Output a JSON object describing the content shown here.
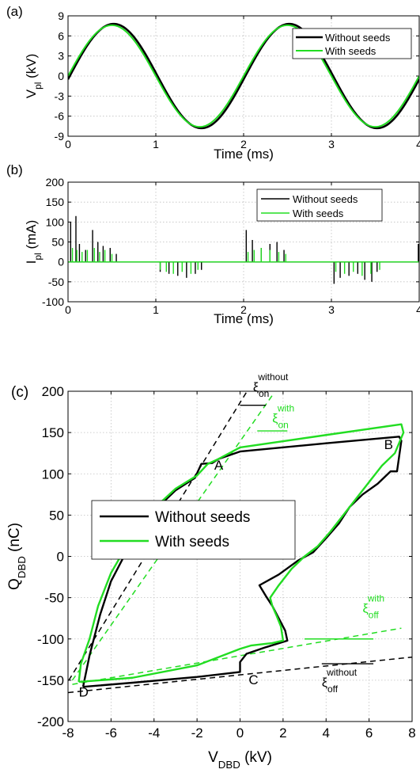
{
  "chart_data": [
    {
      "type": "line",
      "panel_label": "(a)",
      "xlabel": "Time (ms)",
      "ylabel_main": "V",
      "ylabel_sub": "pl",
      "ylabel_unit": " (kV)",
      "xlim": [
        0,
        4
      ],
      "ylim": [
        -9,
        9
      ],
      "xticks": [
        0,
        1,
        2,
        3,
        4
      ],
      "yticks": [
        -9,
        -6,
        -3,
        0,
        3,
        6,
        9
      ],
      "grid": true,
      "legend_position": "top-right",
      "series": [
        {
          "name": "Without seeds",
          "color": "#000000",
          "amplitude": 7.8,
          "frequency_khz": 0.5,
          "zero_crossing_ms": 0.02
        },
        {
          "name": "With seeds",
          "color": "#22dd22",
          "amplitude": 7.6,
          "frequency_khz": 0.5,
          "zero_crossing_ms": 0.0
        }
      ]
    },
    {
      "type": "line",
      "panel_label": "(b)",
      "xlabel": "Time (ms)",
      "ylabel_main": "I",
      "ylabel_sub": "pl",
      "ylabel_unit": " (mA)",
      "xlim": [
        0,
        4
      ],
      "ylim": [
        -100,
        200
      ],
      "xticks": [
        0,
        1,
        2,
        3,
        4
      ],
      "yticks": [
        -100,
        -50,
        0,
        50,
        100,
        150,
        200
      ],
      "grid": true,
      "legend_position": "top-right",
      "series": [
        {
          "name": "Without seeds",
          "color": "#000000",
          "spikes": [
            [
              0.03,
              100
            ],
            [
              0.09,
              115
            ],
            [
              0.13,
              45
            ],
            [
              0.2,
              30
            ],
            [
              0.28,
              80
            ],
            [
              0.34,
              50
            ],
            [
              0.4,
              40
            ],
            [
              0.48,
              35
            ],
            [
              0.55,
              20
            ],
            [
              1.05,
              -25
            ],
            [
              1.15,
              -30
            ],
            [
              1.25,
              -35
            ],
            [
              1.35,
              -40
            ],
            [
              1.45,
              -30
            ],
            [
              1.52,
              -20
            ],
            [
              2.03,
              80
            ],
            [
              2.1,
              55
            ],
            [
              2.2,
              35
            ],
            [
              2.3,
              45
            ],
            [
              2.38,
              50
            ],
            [
              2.46,
              30
            ],
            [
              3.03,
              -55
            ],
            [
              3.1,
              -40
            ],
            [
              3.2,
              -35
            ],
            [
              3.3,
              -30
            ],
            [
              3.38,
              -45
            ],
            [
              3.46,
              -50
            ],
            [
              3.52,
              -25
            ],
            [
              3.99,
              45
            ]
          ]
        },
        {
          "name": "With seeds",
          "color": "#22dd22",
          "spikes": [
            [
              0.05,
              35
            ],
            [
              0.1,
              30
            ],
            [
              0.16,
              25
            ],
            [
              0.22,
              30
            ],
            [
              0.3,
              35
            ],
            [
              0.36,
              25
            ],
            [
              0.42,
              30
            ],
            [
              0.5,
              20
            ],
            [
              1.05,
              -20
            ],
            [
              1.12,
              -25
            ],
            [
              1.2,
              -30
            ],
            [
              1.3,
              -25
            ],
            [
              1.4,
              -30
            ],
            [
              1.48,
              -20
            ],
            [
              2.05,
              25
            ],
            [
              2.12,
              30
            ],
            [
              2.2,
              35
            ],
            [
              2.3,
              30
            ],
            [
              2.4,
              25
            ],
            [
              2.48,
              20
            ],
            [
              3.05,
              -25
            ],
            [
              3.15,
              -30
            ],
            [
              3.25,
              -25
            ],
            [
              3.35,
              -35
            ],
            [
              3.45,
              -30
            ],
            [
              3.55,
              -20
            ]
          ]
        }
      ]
    },
    {
      "type": "line",
      "panel_label": "(c)",
      "xlabel_main": "V",
      "xlabel_sub": "DBD",
      "xlabel_unit": " (kV)",
      "ylabel_main": "Q",
      "ylabel_sub": "DBD",
      "ylabel_unit": " (nC)",
      "xlim": [
        -8,
        8
      ],
      "ylim": [
        -200,
        200
      ],
      "xticks": [
        -8,
        -6,
        -4,
        -2,
        0,
        2,
        4,
        6,
        8
      ],
      "yticks": [
        -200,
        -150,
        -100,
        -50,
        0,
        50,
        100,
        150,
        200
      ],
      "grid": true,
      "legend_position": "middle-left",
      "series": [
        {
          "name": "Without seeds",
          "color": "#000000",
          "points": [
            [
              -7.3,
              -158
            ],
            [
              -5.0,
              -153
            ],
            [
              -2.0,
              -146
            ],
            [
              0.0,
              -140
            ],
            [
              0.0,
              -128
            ],
            [
              0.3,
              -118
            ],
            [
              1.2,
              -110
            ],
            [
              2.2,
              -102
            ],
            [
              2.1,
              -90
            ],
            [
              1.8,
              -75
            ],
            [
              1.5,
              -60
            ],
            [
              1.2,
              -48
            ],
            [
              0.9,
              -35
            ],
            [
              1.8,
              -22
            ],
            [
              2.7,
              -5
            ],
            [
              3.4,
              5
            ],
            [
              4.0,
              22
            ],
            [
              4.6,
              40
            ],
            [
              5.1,
              60
            ],
            [
              5.7,
              75
            ],
            [
              6.4,
              88
            ],
            [
              7.0,
              103
            ],
            [
              7.3,
              103
            ],
            [
              7.5,
              140
            ],
            [
              7.4,
              145
            ],
            [
              4.0,
              137
            ],
            [
              0.0,
              127
            ],
            [
              -1.0,
              118
            ],
            [
              -1.3,
              113
            ],
            [
              -1.8,
              112
            ],
            [
              -2.1,
              95
            ],
            [
              -3.0,
              80
            ],
            [
              -4.0,
              55
            ],
            [
              -5.0,
              20
            ],
            [
              -6.0,
              -30
            ],
            [
              -6.5,
              -70
            ],
            [
              -7.0,
              -120
            ],
            [
              -7.3,
              -158
            ]
          ]
        },
        {
          "name": "With seeds",
          "color": "#22dd22",
          "points": [
            [
              -7.5,
              -152
            ],
            [
              -5.0,
              -147
            ],
            [
              -2.0,
              -132
            ],
            [
              0.0,
              -112
            ],
            [
              0.5,
              -108
            ],
            [
              1.5,
              -105
            ],
            [
              2.0,
              -102
            ],
            [
              1.9,
              -85
            ],
            [
              1.7,
              -72
            ],
            [
              1.5,
              -60
            ],
            [
              1.4,
              -50
            ],
            [
              1.8,
              -35
            ],
            [
              2.4,
              -15
            ],
            [
              3.0,
              0
            ],
            [
              3.6,
              12
            ],
            [
              4.2,
              30
            ],
            [
              4.8,
              50
            ],
            [
              5.4,
              70
            ],
            [
              6.0,
              90
            ],
            [
              6.6,
              110
            ],
            [
              7.2,
              125
            ],
            [
              7.6,
              150
            ],
            [
              7.5,
              160
            ],
            [
              4.0,
              147
            ],
            [
              0.0,
              132
            ],
            [
              -1.0,
              118
            ],
            [
              -1.5,
              112
            ],
            [
              -2.0,
              98
            ],
            [
              -3.0,
              82
            ],
            [
              -4.0,
              58
            ],
            [
              -5.0,
              25
            ],
            [
              -6.0,
              -20
            ],
            [
              -6.6,
              -60
            ],
            [
              -7.0,
              -100
            ],
            [
              -7.4,
              -130
            ],
            [
              -7.5,
              -152
            ]
          ]
        }
      ],
      "dashed_lines": [
        {
          "color": "#000000",
          "from": [
            -8.2,
            -160
          ],
          "to": [
            0.8,
            220
          ]
        },
        {
          "color": "#22dd22",
          "from": [
            -7.8,
            -150
          ],
          "to": [
            1.5,
            195
          ]
        },
        {
          "color": "#000000",
          "from": [
            -8.0,
            -165
          ],
          "to": [
            8.0,
            -122
          ]
        },
        {
          "color": "#22dd22",
          "from": [
            -7.8,
            -155
          ],
          "to": [
            7.5,
            -87
          ]
        }
      ],
      "solid_marks": [
        {
          "color": "#000000",
          "from": [
            0.0,
            183
          ],
          "to": [
            1.2,
            183
          ]
        },
        {
          "color": "#22dd22",
          "from": [
            0.8,
            152
          ],
          "to": [
            2.2,
            152
          ]
        },
        {
          "color": "#22dd22",
          "from": [
            3.0,
            -100
          ],
          "to": [
            6.2,
            -100
          ]
        },
        {
          "color": "#000000",
          "from": [
            3.8,
            -130
          ],
          "to": [
            6.2,
            -130
          ]
        }
      ],
      "annotations": [
        {
          "text": "A",
          "x": -1.2,
          "y": 105
        },
        {
          "text": "B",
          "x": 6.7,
          "y": 130
        },
        {
          "text": "C",
          "x": 0.4,
          "y": -155
        },
        {
          "text": "D",
          "x": -7.5,
          "y": -170
        }
      ],
      "xi_labels": [
        {
          "color": "#000000",
          "x": 0.6,
          "y": 200,
          "sub": "on",
          "sup": "without"
        },
        {
          "color": "#22dd22",
          "x": 1.5,
          "y": 162,
          "sub": "on",
          "sup": "with"
        },
        {
          "color": "#22dd22",
          "x": 5.7,
          "y": -68,
          "sub": "off",
          "sup": "with"
        },
        {
          "color": "#000000",
          "x": 3.8,
          "y": -158,
          "sub": "off",
          "sup": "without"
        }
      ],
      "xi_symbol": "ξ"
    }
  ]
}
